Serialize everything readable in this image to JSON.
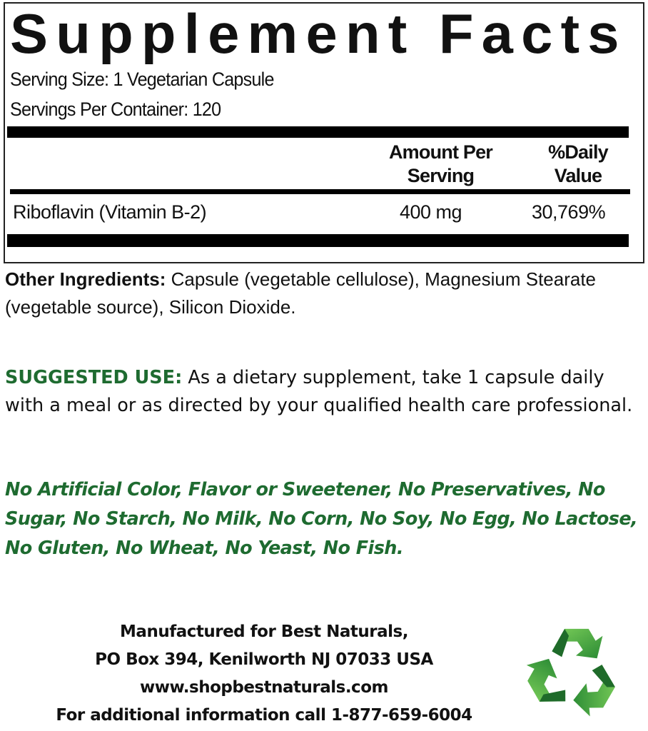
{
  "facts": {
    "title": "Supplement Facts",
    "serving_size": "Serving Size: 1 Vegetarian Capsule",
    "servings_per_container": "Servings Per Container: 120",
    "col_amount_line1": "Amount Per",
    "col_amount_line2": "Serving",
    "col_dv_line1": "%Daily",
    "col_dv_line2": "Value",
    "rows": [
      {
        "name": "Riboflavin (Vitamin B-2)",
        "amount": "400 mg",
        "dv": "30,769%"
      }
    ]
  },
  "other_ingredients": {
    "label": "Other Ingredients:",
    "text": " Capsule (vegetable cellulose), Magnesium Stearate (vegetable source), Silicon Dioxide."
  },
  "suggested_use": {
    "label": "SUGGESTED USE:",
    "text": " As a dietary supplement, take 1 capsule daily with a meal or as directed by your qualified health care professional."
  },
  "claims": "No Artificial Color, Flavor or Sweetener, No Preservatives, No Sugar, No Starch, No Milk, No Corn, No Soy, No Egg, No Lactose, No Gluten, No Wheat, No Yeast, No Fish.",
  "manufacturer": {
    "line1": "Manufactured for Best Naturals,",
    "line2": "PO Box 394, Kenilworth NJ 07033 USA",
    "line3": "www.shopbestnaturals.com",
    "line4": "For additional information call 1-877-659-6004"
  },
  "colors": {
    "green": "#1e6b30",
    "recycle": "#3fa845"
  },
  "icons": {
    "recycle": "recycle-icon"
  }
}
